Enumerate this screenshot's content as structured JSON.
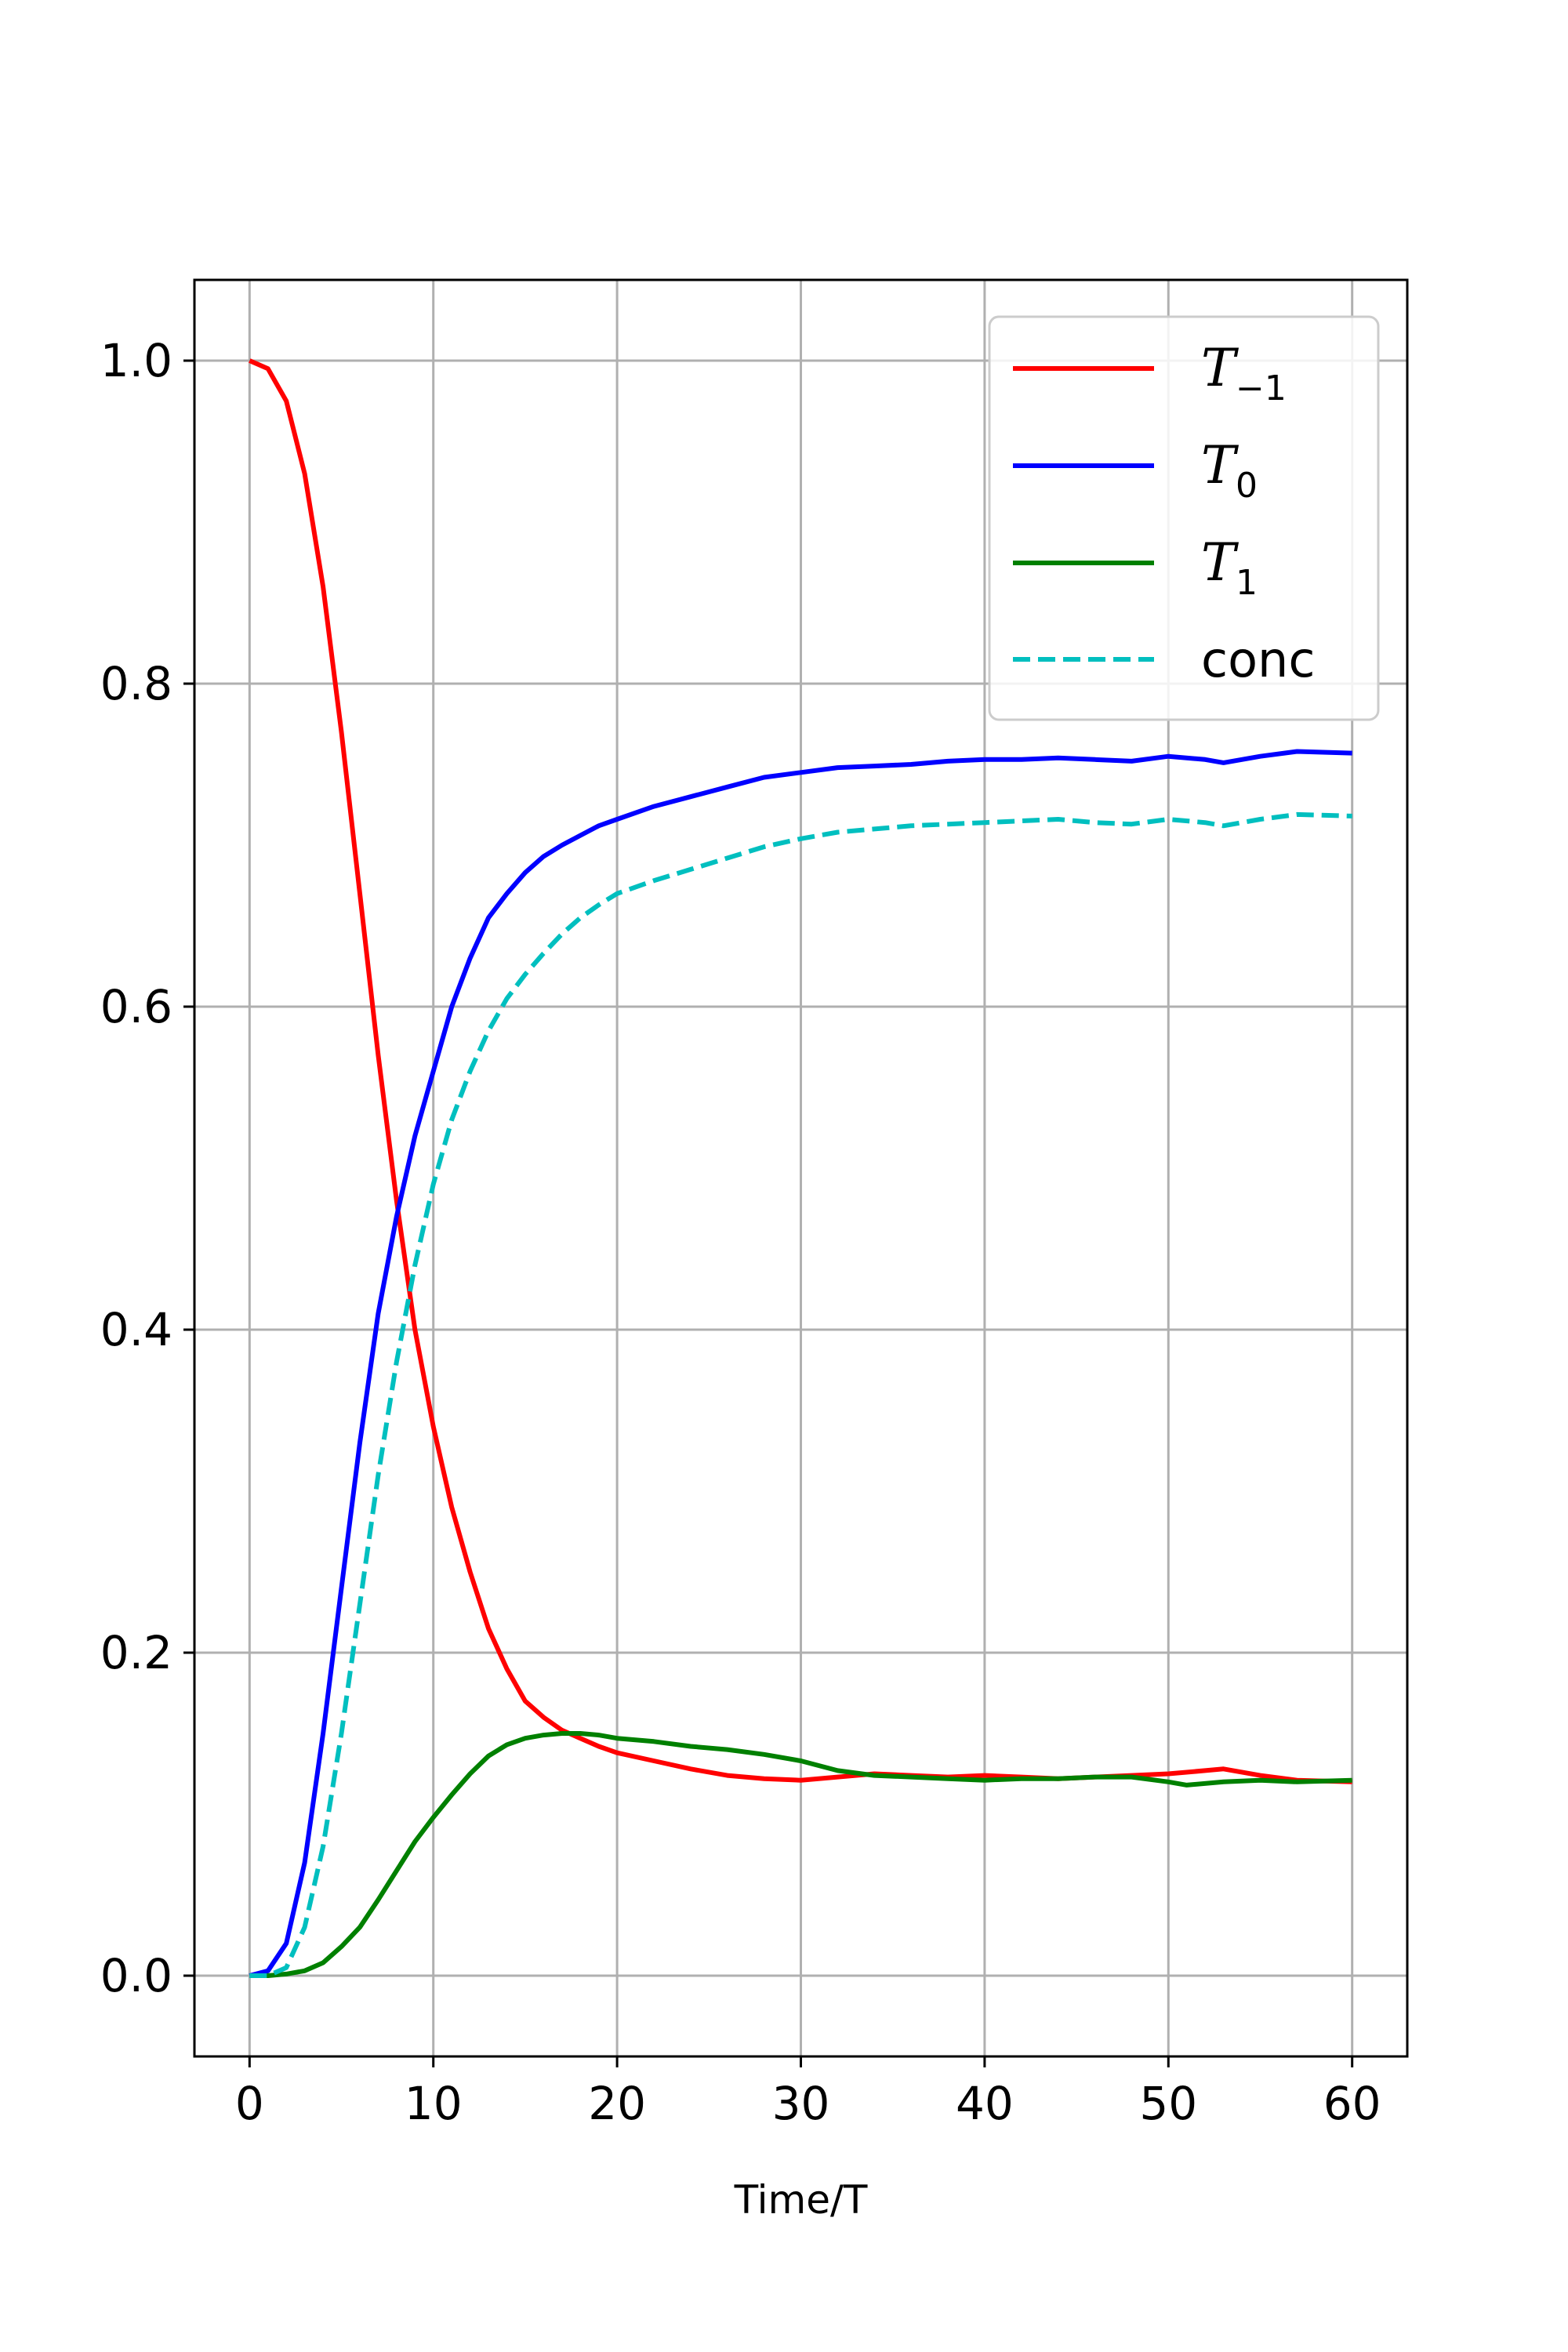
{
  "chart_data": {
    "type": "line",
    "title": "",
    "xlabel": "Time/T",
    "ylabel": "",
    "xlim": [
      -3,
      63
    ],
    "ylim": [
      -0.05,
      1.05
    ],
    "xticks": [
      0,
      10,
      20,
      30,
      40,
      50,
      60
    ],
    "xtick_labels": [
      "0",
      "10",
      "20",
      "30",
      "40",
      "50",
      "60"
    ],
    "yticks": [
      0.0,
      0.2,
      0.4,
      0.6,
      0.8,
      1.0
    ],
    "ytick_labels": [
      "0.0",
      "0.2",
      "0.4",
      "0.6",
      "0.8",
      "1.0"
    ],
    "grid": true,
    "legend": "top-right",
    "series": [
      {
        "name": "T",
        "name_sub": "−1",
        "math": true,
        "color": "#ff0000",
        "dash": "solid",
        "x": [
          0,
          1,
          2,
          3,
          4,
          5,
          6,
          7,
          8,
          9,
          10,
          11,
          12,
          13,
          14,
          15,
          16,
          17,
          18,
          19,
          20,
          22,
          24,
          26,
          28,
          30,
          32,
          34,
          36,
          38,
          40,
          42,
          44,
          46,
          48,
          50,
          52,
          53,
          55,
          57,
          60
        ],
        "y": [
          1.0,
          0.995,
          0.975,
          0.93,
          0.86,
          0.77,
          0.67,
          0.57,
          0.48,
          0.4,
          0.34,
          0.29,
          0.25,
          0.215,
          0.19,
          0.17,
          0.16,
          0.152,
          0.147,
          0.142,
          0.138,
          0.133,
          0.128,
          0.124,
          0.122,
          0.121,
          0.123,
          0.125,
          0.124,
          0.123,
          0.124,
          0.123,
          0.122,
          0.123,
          0.124,
          0.125,
          0.127,
          0.128,
          0.124,
          0.121,
          0.12
        ]
      },
      {
        "name": "T",
        "name_sub": "0",
        "math": true,
        "color": "#0000ff",
        "dash": "solid",
        "x": [
          0,
          1,
          2,
          3,
          4,
          5,
          6,
          7,
          8,
          9,
          10,
          11,
          12,
          13,
          14,
          15,
          16,
          17,
          18,
          19,
          20,
          22,
          24,
          26,
          28,
          30,
          32,
          34,
          36,
          38,
          40,
          42,
          44,
          46,
          48,
          50,
          52,
          53,
          55,
          57,
          60
        ],
        "y": [
          0.0,
          0.003,
          0.02,
          0.07,
          0.15,
          0.24,
          0.33,
          0.41,
          0.47,
          0.52,
          0.56,
          0.6,
          0.63,
          0.655,
          0.67,
          0.683,
          0.693,
          0.7,
          0.706,
          0.712,
          0.716,
          0.724,
          0.73,
          0.736,
          0.742,
          0.745,
          0.748,
          0.749,
          0.75,
          0.752,
          0.753,
          0.753,
          0.754,
          0.753,
          0.752,
          0.755,
          0.753,
          0.751,
          0.755,
          0.758,
          0.757
        ]
      },
      {
        "name": "T",
        "name_sub": "1",
        "math": true,
        "color": "#008000",
        "dash": "solid",
        "x": [
          0,
          1,
          2,
          3,
          4,
          5,
          6,
          7,
          8,
          9,
          10,
          11,
          12,
          13,
          14,
          15,
          16,
          17,
          18,
          19,
          20,
          22,
          24,
          26,
          28,
          30,
          32,
          34,
          36,
          38,
          40,
          42,
          44,
          46,
          48,
          50,
          51,
          53,
          55,
          57,
          60
        ],
        "y": [
          0.0,
          0.0,
          0.001,
          0.003,
          0.008,
          0.018,
          0.03,
          0.047,
          0.065,
          0.083,
          0.098,
          0.112,
          0.125,
          0.136,
          0.143,
          0.147,
          0.149,
          0.15,
          0.15,
          0.149,
          0.147,
          0.145,
          0.142,
          0.14,
          0.137,
          0.133,
          0.127,
          0.124,
          0.123,
          0.122,
          0.121,
          0.122,
          0.122,
          0.123,
          0.123,
          0.12,
          0.118,
          0.12,
          0.121,
          0.12,
          0.121
        ]
      },
      {
        "name": "conc",
        "name_sub": "",
        "math": false,
        "color": "#00bfbf",
        "dash": "dashed",
        "x": [
          0,
          1,
          2,
          3,
          4,
          5,
          6,
          7,
          8,
          9,
          10,
          11,
          12,
          13,
          14,
          15,
          16,
          17,
          18,
          19,
          20,
          22,
          24,
          26,
          28,
          30,
          32,
          34,
          36,
          38,
          40,
          42,
          44,
          46,
          48,
          50,
          52,
          53,
          55,
          57,
          60
        ],
        "y": [
          0.0,
          0.0,
          0.005,
          0.03,
          0.08,
          0.15,
          0.23,
          0.31,
          0.38,
          0.44,
          0.49,
          0.53,
          0.56,
          0.585,
          0.605,
          0.62,
          0.633,
          0.645,
          0.655,
          0.663,
          0.67,
          0.678,
          0.685,
          0.692,
          0.699,
          0.704,
          0.708,
          0.71,
          0.712,
          0.713,
          0.714,
          0.715,
          0.716,
          0.714,
          0.713,
          0.716,
          0.714,
          0.712,
          0.716,
          0.719,
          0.718
        ]
      }
    ]
  }
}
